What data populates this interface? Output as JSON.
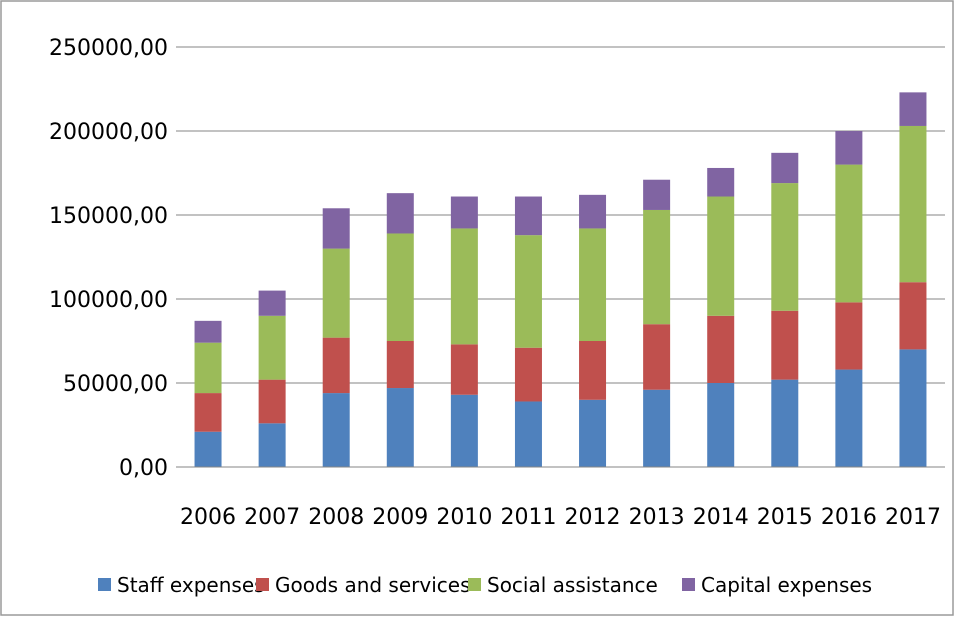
{
  "chart_data": {
    "type": "bar",
    "stacked": true,
    "categories": [
      "2006",
      "2007",
      "2008",
      "2009",
      "2010",
      "2011",
      "2012",
      "2013",
      "2014",
      "2015",
      "2016",
      "2017"
    ],
    "series": [
      {
        "name": "Staff expenses",
        "color": "#4F81BD",
        "values": [
          21000,
          26000,
          44000,
          47000,
          43000,
          39000,
          40000,
          46000,
          50000,
          52000,
          58000,
          70000
        ]
      },
      {
        "name": "Goods and services",
        "color": "#C0504D",
        "values": [
          23000,
          26000,
          33000,
          28000,
          30000,
          32000,
          35000,
          39000,
          40000,
          41000,
          40000,
          40000
        ]
      },
      {
        "name": "Social assistance",
        "color": "#9BBB59",
        "values": [
          30000,
          38000,
          53000,
          64000,
          69000,
          67000,
          67000,
          68000,
          71000,
          76000,
          82000,
          93000
        ]
      },
      {
        "name": "Capital expenses",
        "color": "#8064A2",
        "values": [
          13000,
          15000,
          24000,
          24000,
          19000,
          23000,
          20000,
          18000,
          17000,
          18000,
          20000,
          20000
        ]
      }
    ],
    "y_ticks": [
      "0,00",
      "50000,00",
      "100000,00",
      "150000,00",
      "200000,00",
      "250000,00"
    ],
    "ylim": [
      0,
      250000
    ],
    "y_tick_step": 50000,
    "grid": true,
    "legend_position": "bottom",
    "title": "",
    "xlabel": "",
    "ylabel": ""
  }
}
